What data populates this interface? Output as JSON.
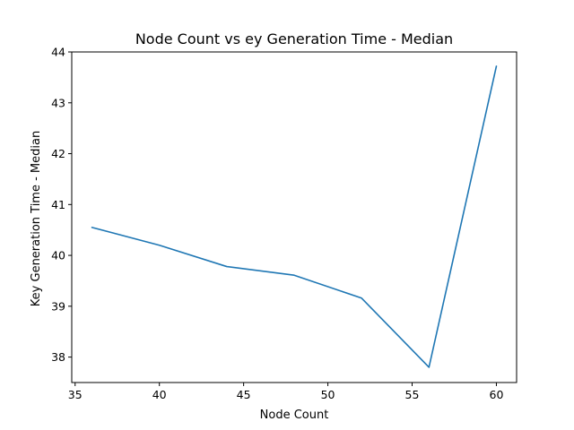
{
  "chart_data": {
    "type": "line",
    "title": "Node Count vs ey Generation Time  - Median",
    "xlabel": "Node Count",
    "ylabel": "Key Generation Time - Median",
    "x": [
      36,
      40,
      44,
      48,
      52,
      56,
      60
    ],
    "series": [
      {
        "values": [
          40.55,
          40.2,
          39.78,
          39.61,
          39.16,
          37.8,
          43.72
        ],
        "color": "#1f77b4"
      }
    ],
    "xlim": [
      34.8,
      61.2
    ],
    "ylim": [
      37.5,
      44.0
    ],
    "xticks": [
      35,
      40,
      45,
      50,
      55,
      60
    ],
    "yticks": [
      38,
      39,
      40,
      41,
      42,
      43,
      44
    ],
    "grid": false,
    "legend": "none"
  }
}
